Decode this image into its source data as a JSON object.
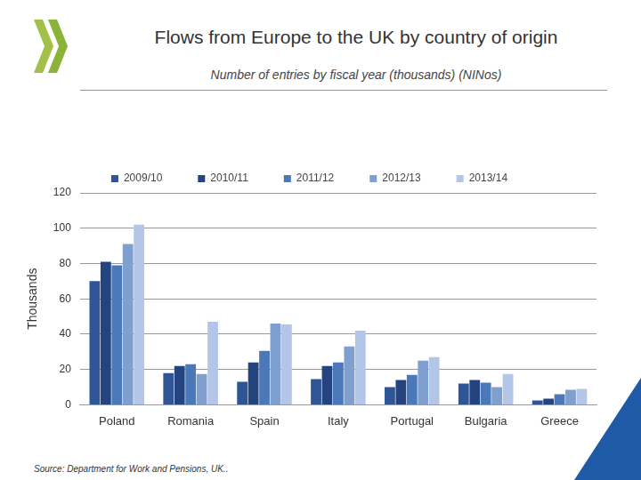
{
  "chart_data": {
    "type": "bar",
    "title": "Flows from Europe to the UK by country of origin",
    "subtitle": "Number of entries by fiscal year (thousands) (NINos)",
    "y_label": "Thousands",
    "source": "Source: Department for Work and Pensions, UK..",
    "categories": [
      "Poland",
      "Romania",
      "Spain",
      "Italy",
      "Portugal",
      "Bulgaria",
      "Greece"
    ],
    "series": [
      {
        "name": "2009/10",
        "color": "#2f5597",
        "values": [
          70,
          18,
          13,
          14.5,
          10,
          12,
          2.5
        ]
      },
      {
        "name": "2010/11",
        "color": "#23447f",
        "values": [
          81,
          22,
          24,
          22,
          14,
          14,
          3.5
        ]
      },
      {
        "name": "2011/12",
        "color": "#4a78b8",
        "values": [
          79,
          23,
          30.5,
          24,
          17,
          12.5,
          6
        ]
      },
      {
        "name": "2012/13",
        "color": "#7f9fcf",
        "values": [
          91,
          17.5,
          46,
          33,
          25,
          10,
          8.5
        ]
      },
      {
        "name": "2013/14",
        "color": "#b4c6e7",
        "values": [
          102,
          47,
          45.5,
          42,
          27,
          17.5,
          9
        ]
      }
    ],
    "ylim": [
      0,
      120
    ],
    "yticks": [
      0,
      20,
      40,
      60,
      80,
      100,
      120
    ],
    "grid": true,
    "legend": "top"
  }
}
